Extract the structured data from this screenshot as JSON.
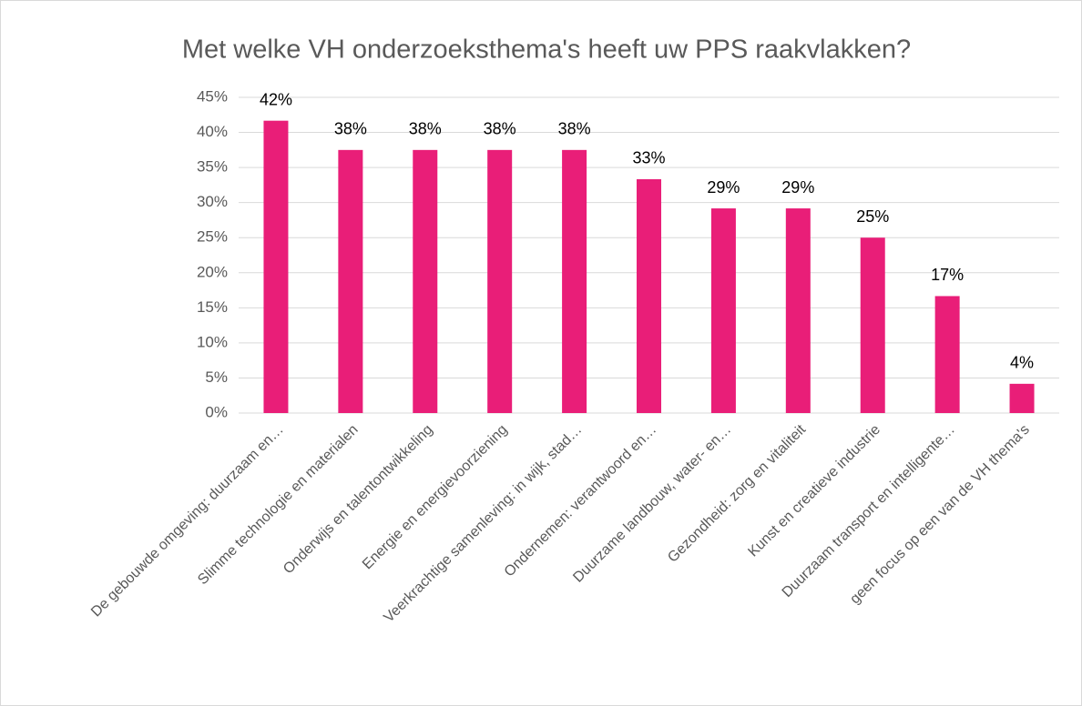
{
  "chart_data": {
    "type": "bar",
    "title": "Met welke VH onderzoeksthema's heeft uw PPS raakvlakken?",
    "categories": [
      "De gebouwde omgeving: duurzaam en…",
      "Slimme technologie en materialen",
      "Onderwijs en talentontwikkeling",
      "Energie en energievoorziening",
      "Veerkrachtige samenleving: in wijk, stad…",
      "Ondernemen: verantwoord en…",
      "Duurzame landbouw, water- en…",
      "Gezondheid: zorg en vitaliteit",
      "Kunst en creatieve industrie",
      "Duurzaam transport en intelligente…",
      "geen focus op een van de VH thema's"
    ],
    "values": [
      41.67,
      37.5,
      37.5,
      37.5,
      37.5,
      33.33,
      29.17,
      29.17,
      25,
      16.67,
      4.17
    ],
    "value_labels": [
      "42%",
      "38%",
      "38%",
      "38%",
      "38%",
      "33%",
      "29%",
      "29%",
      "25%",
      "17%",
      "4%"
    ],
    "color": "#e91e78",
    "ylim": [
      0,
      45
    ],
    "yticks": [
      {
        "value": 0,
        "label": "0%"
      },
      {
        "value": 5,
        "label": "5%"
      },
      {
        "value": 10,
        "label": "10%"
      },
      {
        "value": 15,
        "label": "15%"
      },
      {
        "value": 20,
        "label": "20%"
      },
      {
        "value": 25,
        "label": "25%"
      },
      {
        "value": 30,
        "label": "30%"
      },
      {
        "value": 35,
        "label": "35%"
      },
      {
        "value": 40,
        "label": "40%"
      },
      {
        "value": 45,
        "label": "45%"
      }
    ],
    "grid": true
  }
}
